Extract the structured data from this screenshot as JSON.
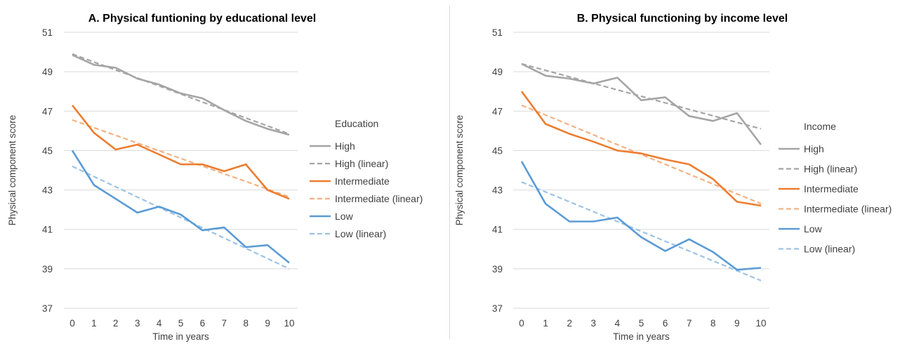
{
  "chart_data": [
    {
      "type": "line",
      "title": "A. Physical funtioning by educational level",
      "xlabel": "Time in years",
      "ylabel": "Physical component score",
      "x": [
        0,
        1,
        2,
        3,
        4,
        5,
        6,
        7,
        8,
        9,
        10
      ],
      "ylim": [
        37,
        51
      ],
      "yticks": [
        37,
        39,
        41,
        43,
        45,
        47,
        49,
        51
      ],
      "grid": "horizontal",
      "legend": {
        "title": "Education",
        "position": "right"
      },
      "series": [
        {
          "name": "High",
          "color": "#a5a5a5",
          "dashed": false,
          "values": [
            49.85,
            49.35,
            49.2,
            48.65,
            48.35,
            47.9,
            47.65,
            47.05,
            46.5,
            46.1,
            45.8
          ]
        },
        {
          "name": "High (linear)",
          "color": "#a5a5a5",
          "dashed": true,
          "values": [
            49.9,
            49.49,
            49.09,
            48.68,
            48.28,
            47.87,
            47.46,
            47.06,
            46.65,
            46.25,
            45.84
          ]
        },
        {
          "name": "Intermediate",
          "color": "#ed7d31",
          "dashed": false,
          "values": [
            47.3,
            45.9,
            45.05,
            45.3,
            44.8,
            44.3,
            44.3,
            43.95,
            44.3,
            43.0,
            42.55
          ]
        },
        {
          "name": "Intermediate (linear)",
          "color": "#f4b183",
          "dashed": true,
          "values": [
            46.55,
            46.16,
            45.77,
            45.38,
            44.99,
            44.6,
            44.21,
            43.82,
            43.43,
            43.04,
            42.65
          ]
        },
        {
          "name": "Low",
          "color": "#5b9bd5",
          "dashed": false,
          "values": [
            45.0,
            43.25,
            42.55,
            41.85,
            42.15,
            41.75,
            40.95,
            41.1,
            40.1,
            40.2,
            39.3
          ]
        },
        {
          "name": "Low (linear)",
          "color": "#9dc3e6",
          "dashed": true,
          "values": [
            44.2,
            43.68,
            43.16,
            42.64,
            42.12,
            41.6,
            41.08,
            40.56,
            40.04,
            39.52,
            39.0
          ]
        }
      ]
    },
    {
      "type": "line",
      "title": "B. Physical functioning by income level",
      "xlabel": "Time in years",
      "ylabel": "Physical component score",
      "x": [
        0,
        1,
        2,
        3,
        4,
        5,
        6,
        7,
        8,
        9,
        10
      ],
      "ylim": [
        37,
        51
      ],
      "yticks": [
        37,
        39,
        41,
        43,
        45,
        47,
        49,
        51
      ],
      "grid": "horizontal",
      "legend": {
        "title": "Income",
        "position": "right"
      },
      "series": [
        {
          "name": "High",
          "color": "#a5a5a5",
          "dashed": false,
          "values": [
            49.4,
            48.8,
            48.65,
            48.4,
            48.7,
            47.55,
            47.7,
            46.75,
            46.5,
            46.9,
            45.3
          ]
        },
        {
          "name": "High (linear)",
          "color": "#a5a5a5",
          "dashed": true,
          "values": [
            49.4,
            49.07,
            48.74,
            48.41,
            48.08,
            47.75,
            47.42,
            47.09,
            46.76,
            46.43,
            46.1
          ]
        },
        {
          "name": "Intermediate",
          "color": "#ed7d31",
          "dashed": false,
          "values": [
            48.0,
            46.35,
            45.85,
            45.45,
            45.0,
            44.85,
            44.55,
            44.3,
            43.55,
            42.4,
            42.2
          ]
        },
        {
          "name": "Intermediate (linear)",
          "color": "#f4b183",
          "dashed": true,
          "values": [
            47.3,
            46.8,
            46.3,
            45.8,
            45.3,
            44.8,
            44.3,
            43.8,
            43.3,
            42.8,
            42.3
          ]
        },
        {
          "name": "Low",
          "color": "#5b9bd5",
          "dashed": false,
          "values": [
            44.45,
            42.3,
            41.4,
            41.4,
            41.6,
            40.6,
            39.9,
            40.5,
            39.85,
            38.95,
            39.05
          ]
        },
        {
          "name": "Low (linear)",
          "color": "#9dc3e6",
          "dashed": true,
          "values": [
            43.4,
            42.9,
            42.4,
            41.9,
            41.4,
            40.9,
            40.4,
            39.9,
            39.4,
            38.9,
            38.4
          ]
        }
      ]
    }
  ]
}
